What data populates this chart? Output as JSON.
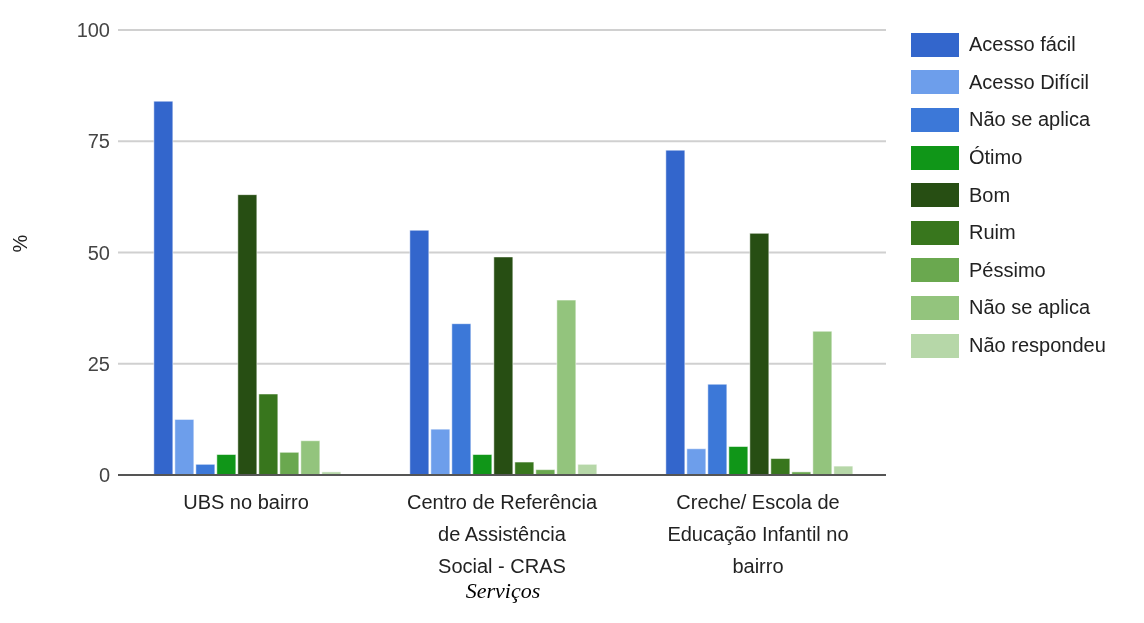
{
  "chart_data": {
    "type": "bar",
    "xlabel": "Serviços",
    "ylabel": "%",
    "categories": [
      "UBS no bairro",
      "Centro de Referência de Assistência Social - CRAS",
      "Creche/ Escola de Educação Infantil no bairro"
    ],
    "series": [
      {
        "name": "Acesso fácil",
        "color": "#3366cc",
        "values": [
          84,
          55,
          73
        ]
      },
      {
        "name": "Acesso Difícil",
        "color": "#6d9eeb",
        "values": [
          12.5,
          10.3,
          5.9
        ]
      },
      {
        "name": "Não se aplica",
        "color": "#3c78d8",
        "values": [
          2.4,
          34,
          20.4
        ]
      },
      {
        "name": "Ótimo",
        "color": "#109618",
        "values": [
          4.6,
          4.6,
          6.4
        ]
      },
      {
        "name": "Bom",
        "color": "#274e13",
        "values": [
          63,
          49,
          54.3
        ]
      },
      {
        "name": "Ruim",
        "color": "#38761d",
        "values": [
          18.2,
          2.9,
          3.7
        ]
      },
      {
        "name": "Péssimo",
        "color": "#6aa84f",
        "values": [
          5.1,
          1.2,
          0.7
        ]
      },
      {
        "name": "Não se aplica",
        "color": "#93c47d",
        "values": [
          7.7,
          39.3,
          32.3
        ]
      },
      {
        "name": "Não respondeu",
        "color": "#b6d7a8",
        "values": [
          0.7,
          2.4,
          2
        ]
      }
    ],
    "ylim": [
      0,
      100
    ],
    "yticks": [
      0,
      25,
      50,
      75,
      100
    ],
    "grid": "y",
    "legend": "right"
  }
}
